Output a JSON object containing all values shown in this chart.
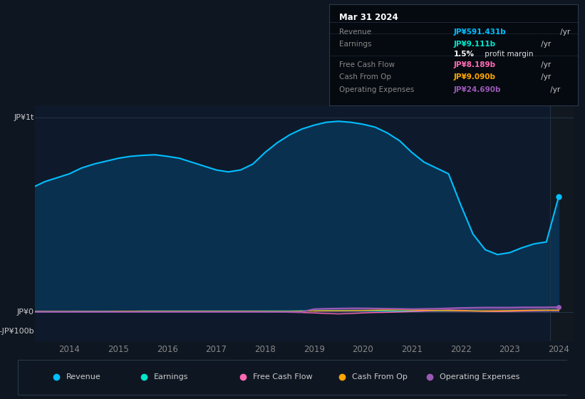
{
  "bg_color": "#0e1621",
  "plot_bg_color": "#0e1a2b",
  "title_text": "Mar 31 2024",
  "revenue_color": "#00bfff",
  "earnings_color": "#00e5cc",
  "free_cash_flow_color": "#ff69b4",
  "cash_from_op_color": "#ffa500",
  "operating_expenses_color": "#9b59b6",
  "fill_color": "#0a3050",
  "right_panel_color": "#111820",
  "ylabel_top": "JP¥1t",
  "ylabel_zero": "JP¥0",
  "ylabel_neg": "-JP¥100b",
  "xticks": [
    2014,
    2015,
    2016,
    2017,
    2018,
    2019,
    2020,
    2021,
    2022,
    2023,
    2024
  ],
  "xlim": [
    2013.3,
    2024.3
  ],
  "ylim": [
    -150,
    1060
  ],
  "y_top_line": 1000,
  "y_zero_line": 0,
  "divider_x": 2023.83,
  "years": [
    2013.25,
    2013.5,
    2013.75,
    2014.0,
    2014.25,
    2014.5,
    2014.75,
    2015.0,
    2015.25,
    2015.5,
    2015.75,
    2016.0,
    2016.25,
    2016.5,
    2016.75,
    2017.0,
    2017.25,
    2017.5,
    2017.75,
    2018.0,
    2018.25,
    2018.5,
    2018.75,
    2019.0,
    2019.25,
    2019.5,
    2019.75,
    2020.0,
    2020.25,
    2020.5,
    2020.75,
    2021.0,
    2021.25,
    2021.5,
    2021.75,
    2022.0,
    2022.25,
    2022.5,
    2022.75,
    2023.0,
    2023.25,
    2023.5,
    2023.75,
    2024.0
  ],
  "revenue": [
    640,
    670,
    690,
    710,
    740,
    760,
    775,
    790,
    800,
    805,
    808,
    800,
    790,
    770,
    750,
    730,
    720,
    730,
    760,
    820,
    870,
    910,
    940,
    960,
    975,
    980,
    975,
    965,
    950,
    920,
    880,
    820,
    770,
    740,
    710,
    550,
    400,
    320,
    295,
    305,
    330,
    350,
    360,
    591
  ],
  "earnings": [
    3,
    3,
    3,
    3,
    4,
    4,
    4,
    4,
    4,
    5,
    5,
    5,
    5,
    5,
    5,
    5,
    5,
    5,
    5,
    5,
    5,
    5,
    6,
    6,
    7,
    7,
    7,
    7,
    6,
    5,
    4,
    4,
    5,
    6,
    7,
    7,
    6,
    5,
    4,
    5,
    7,
    8,
    9,
    9
  ],
  "free_cash_flow": [
    2,
    2,
    2,
    2,
    2,
    2,
    2,
    2,
    2,
    2,
    2,
    2,
    2,
    2,
    2,
    2,
    2,
    2,
    2,
    1,
    0,
    -2,
    -3,
    -5,
    -8,
    -10,
    -8,
    -5,
    -3,
    -2,
    0,
    2,
    5,
    8,
    10,
    8,
    5,
    3,
    2,
    3,
    5,
    7,
    8,
    8
  ],
  "cash_from_op": [
    2,
    2,
    2,
    2,
    2,
    2,
    2,
    3,
    3,
    3,
    3,
    3,
    3,
    3,
    3,
    3,
    3,
    3,
    3,
    3,
    3,
    3,
    4,
    5,
    6,
    6,
    7,
    8,
    9,
    10,
    11,
    10,
    9,
    8,
    7,
    6,
    5,
    5,
    6,
    7,
    8,
    9,
    9,
    9
  ],
  "operating_expenses": [
    0,
    0,
    0,
    0,
    0,
    0,
    0,
    0,
    0,
    0,
    0,
    0,
    0,
    0,
    0,
    0,
    0,
    0,
    0,
    0,
    0,
    0,
    0,
    15,
    17,
    18,
    19,
    19,
    18,
    17,
    16,
    15,
    16,
    17,
    19,
    21,
    22,
    23,
    23,
    23,
    24,
    24,
    24,
    25
  ],
  "legend_items": [
    {
      "label": "Revenue",
      "color": "#00bfff"
    },
    {
      "label": "Earnings",
      "color": "#00e5cc"
    },
    {
      "label": "Free Cash Flow",
      "color": "#ff69b4"
    },
    {
      "label": "Cash From Op",
      "color": "#ffa500"
    },
    {
      "label": "Operating Expenses",
      "color": "#9b59b6"
    }
  ],
  "tooltip": {
    "title": "Mar 31 2024",
    "rows": [
      {
        "label": "Revenue",
        "value": "JP¥591.431b /yr",
        "value_color": "#00bfff",
        "sep_after": true
      },
      {
        "label": "Earnings",
        "value": "JP¥9.111b /yr",
        "value_color": "#00e5cc",
        "sep_after": false
      },
      {
        "label": "",
        "value": "1.5% profit margin",
        "value_color": "#dddddd",
        "bold_prefix": "1.5%",
        "sep_after": true
      },
      {
        "label": "Free Cash Flow",
        "value": "JP¥8.189b /yr",
        "value_color": "#ff69b4",
        "sep_after": false
      },
      {
        "label": "Cash From Op",
        "value": "JP¥9.090b /yr",
        "value_color": "#ffa500",
        "sep_after": false
      },
      {
        "label": "Operating Expenses",
        "value": "JP¥24.690b /yr",
        "value_color": "#9b59b6",
        "sep_after": false
      }
    ]
  }
}
